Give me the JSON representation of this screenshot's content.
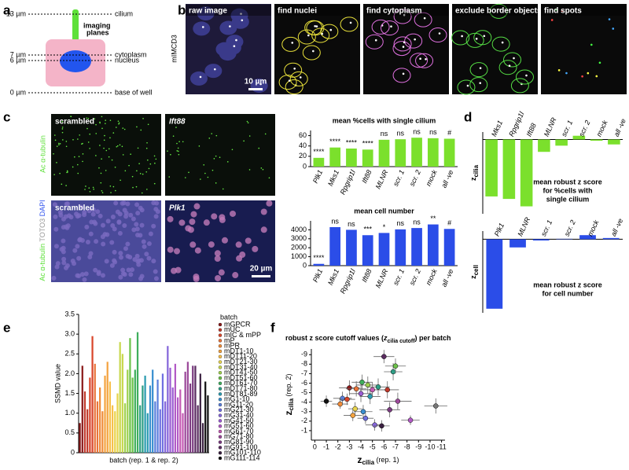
{
  "panels": {
    "a": {
      "letter": "a",
      "levels": [
        {
          "label": "13 µm",
          "name": "cilium"
        },
        {
          "label": "7 µm",
          "name": "cytoplasm"
        },
        {
          "label": "6 µm",
          "name": "nucleus"
        },
        {
          "label": "0 µm",
          "name": "base of well"
        }
      ],
      "imaging_planes": [
        "imaging",
        "planes"
      ]
    },
    "b": {
      "letter": "b",
      "row_label": "mIMCD3",
      "images": [
        "raw image",
        "find nuclei",
        "find cytoplasm",
        "exclude border objects",
        "find spots"
      ],
      "scale_bar": "10 µm"
    },
    "c": {
      "letter": "c",
      "top_label": "Ac α-tubulin",
      "bottom_label": [
        "Ac α-tubulin",
        "TOTO3",
        "DAPI"
      ],
      "images": [
        "scrambled",
        "Ift88",
        "scrambled",
        "Plk1"
      ],
      "scale_bar": "20 µm"
    },
    "d": {
      "letter": "d"
    },
    "e": {
      "letter": "e"
    },
    "f": {
      "letter": "f"
    }
  },
  "chart_data": [
    {
      "type": "bar",
      "title": "mean %cells with single cilium",
      "categories": [
        "Plk1",
        "Mks1",
        "Rpgrip1l",
        "Ift88",
        "MLNR",
        "scr. 1",
        "scr. 2",
        "mock",
        "all -ve"
      ],
      "values": [
        17,
        37,
        35,
        33,
        52,
        53,
        56,
        55,
        54
      ],
      "annotations": [
        "****",
        "****",
        "****",
        "****",
        "ns",
        "ns",
        "ns",
        "ns",
        "#"
      ],
      "color": "#7be02c",
      "ylim": [
        0,
        70
      ],
      "yticks": [
        0,
        20,
        40,
        60
      ]
    },
    {
      "type": "bar",
      "title": "mean cell number",
      "categories": [
        "Plk1",
        "Mks1",
        "Rpgrip1l",
        "Ift88",
        "MLNR",
        "scr. 1",
        "scr. 2",
        "mock",
        "all -ve"
      ],
      "values": [
        200,
        4300,
        4000,
        3400,
        3650,
        4050,
        4200,
        4600,
        4100
      ],
      "annotations": [
        "****",
        "ns",
        "ns",
        "***",
        "*",
        "ns",
        "ns",
        "**",
        "#"
      ],
      "color": "#2b4de8",
      "ylim": [
        0,
        5000
      ],
      "yticks": [
        0,
        1000,
        2000,
        3000,
        4000
      ]
    },
    {
      "type": "zbar",
      "ylabel": "z",
      "ylabel_sub": "cilia",
      "annotation": [
        "mean robust z score",
        "for %cells with",
        "single cilium"
      ],
      "categories": [
        "Mks1",
        "Rpgrip1l",
        "Ift88",
        "MLNR",
        "scr. 1",
        "scr. 2",
        "mock",
        "all -ve"
      ],
      "values": [
        -4.6,
        -4.8,
        -5.4,
        -1.0,
        -0.5,
        0.3,
        -0.1,
        -0.4
      ],
      "color": "#7be02c",
      "ylim": [
        -6,
        0.6
      ]
    },
    {
      "type": "zbar",
      "ylabel": "z",
      "ylabel_sub": "cell",
      "annotation": [
        "mean robust z score",
        "for cell number"
      ],
      "categories": [
        "Plk1",
        "MLNR",
        "scr. 1",
        "scr. 2",
        "mock",
        "all -ve"
      ],
      "values": [
        -17,
        -2,
        -0.3,
        0.1,
        1.0,
        0.3
      ],
      "color": "#2b4de8",
      "ylim": [
        -18,
        2
      ]
    },
    {
      "type": "batchbar",
      "ylabel": "SSMD value",
      "xlabel": "batch (rep. 1 & rep. 2)",
      "legend_title": "batch",
      "ylim": [
        0,
        3.5
      ],
      "yticks": [
        0,
        0.5,
        {
          "value": 1,
          "label": "1.0"
        },
        1.5,
        {
          "value": 2,
          "label": "2.0"
        },
        2.5,
        {
          "value": 3,
          "label": "3.0"
        },
        3.5
      ],
      "series": [
        {
          "name": "mGPCR",
          "color": "#8b1a1a",
          "values": [
            0.75,
            2.2
          ]
        },
        {
          "name": "mUC",
          "color": "#c0392b",
          "values": [
            1.55,
            1.1
          ]
        },
        {
          "name": "mIC & mPP",
          "color": "#d9462b",
          "values": [
            1.9,
            2.95
          ]
        },
        {
          "name": "mP",
          "color": "#e8743b",
          "values": [
            2.25,
            1.3
          ]
        },
        {
          "name": "mPR",
          "color": "#f08c3a",
          "values": [
            1.65,
            1.05
          ]
        },
        {
          "name": "mDT1-10",
          "color": "#f4a340",
          "values": [
            1.95,
            2.3
          ]
        },
        {
          "name": "mDT11-20",
          "color": "#f7c04a",
          "values": [
            1.8,
            1.2
          ]
        },
        {
          "name": "mDT21-30",
          "color": "#e8d44d",
          "values": [
            1.05,
            1.5
          ]
        },
        {
          "name": "mDT31-40",
          "color": "#c8d84e",
          "values": [
            2.8,
            2.5
          ]
        },
        {
          "name": "mDT41-50",
          "color": "#9fd14f",
          "values": [
            1.25,
            2.1
          ]
        },
        {
          "name": "mDT51-60",
          "color": "#6cc24a",
          "values": [
            2.9,
            1.9
          ]
        },
        {
          "name": "mDT61-70",
          "color": "#3fae5c",
          "values": [
            2.1,
            3.05
          ]
        },
        {
          "name": "mDT71-80",
          "color": "#2e9e86",
          "values": [
            1.2,
            1.7
          ]
        },
        {
          "name": "mDT81-89",
          "color": "#2a9bb0",
          "values": [
            1.95,
            1.0
          ]
        },
        {
          "name": "mG1-10",
          "color": "#3a8fd0",
          "values": [
            1.7,
            2.1
          ]
        },
        {
          "name": "mG11-20",
          "color": "#5b7fdc",
          "values": [
            1.3,
            1.85
          ]
        },
        {
          "name": "mG21-30",
          "color": "#6f6fe0",
          "values": [
            1.1,
            2.0
          ]
        },
        {
          "name": "mG31-40",
          "color": "#8566da",
          "values": [
            1.3,
            2.7
          ]
        },
        {
          "name": "mG41-50",
          "color": "#9b5cd2",
          "values": [
            2.15,
            1.65
          ]
        },
        {
          "name": "mG51-60",
          "color": "#b35ac6",
          "values": [
            2.25,
            1.4
          ]
        },
        {
          "name": "mG61-70",
          "color": "#c55bb4",
          "values": [
            1.6,
            1.0
          ]
        },
        {
          "name": "mG71-80",
          "color": "#9c4a9a",
          "values": [
            2.05,
            2.3
          ]
        },
        {
          "name": "mG81-90",
          "color": "#7a3a80",
          "values": [
            1.75,
            2.2
          ]
        },
        {
          "name": "mG91-100",
          "color": "#5a2c60",
          "values": [
            2.2,
            1.2
          ]
        },
        {
          "name": "mG101-110",
          "color": "#3a2040",
          "values": [
            2.0,
            0.75
          ]
        },
        {
          "name": "mG111-114",
          "color": "#111111",
          "values": [
            1.8,
            1.45
          ]
        }
      ]
    },
    {
      "type": "scatter",
      "title": [
        "robust z score cutoff values (",
        "z",
        "cilia cutoff",
        ") per batch"
      ],
      "xlabel": [
        "z",
        "cilia",
        " (rep. 1)"
      ],
      "ylabel": [
        "z",
        "cilia",
        " (rep. 2)"
      ],
      "xlim": [
        0.3,
        -11.3
      ],
      "ylim": [
        0,
        -9.6
      ],
      "xticks": [
        0,
        -1,
        -2,
        -3,
        -4,
        -5,
        -6,
        -7,
        -8,
        -9,
        -10,
        -11
      ],
      "yticks": [
        -1,
        -2,
        -3,
        -4,
        -5,
        -6,
        -7,
        -8,
        -9
      ],
      "x": [
        -1,
        -2.2,
        -2.4,
        -2.8,
        -3,
        -3.3,
        -3.5,
        -3.6,
        -4,
        -4.1,
        -4.2,
        -4.4,
        -4.6,
        -4.8,
        -5,
        -5.2,
        -5.5,
        -5.8,
        -6,
        -6.3,
        -6.5,
        -6.8,
        -7,
        -7.2,
        -8.3,
        -10.5
      ],
      "y": [
        -4.1,
        -3.8,
        -4.4,
        -4.3,
        -5.5,
        -2.6,
        -3.3,
        -5.4,
        -4.9,
        -6.1,
        -3.0,
        -2.3,
        -5.8,
        -4.6,
        -5.3,
        -1.6,
        -5.6,
        -1.5,
        -8.8,
        -5.3,
        -3.2,
        -7.2,
        -7.8,
        -4.1,
        -2.1,
        -3.6
      ],
      "xerr": [
        0.5,
        0.7,
        0.8,
        0.7,
        0.9,
        0.8,
        0.6,
        0.9,
        1.0,
        0.9,
        0.8,
        0.7,
        1.0,
        0.9,
        1.1,
        0.8,
        1.0,
        0.7,
        0.9,
        1.0,
        0.9,
        0.8,
        0.9,
        1.2,
        0.8,
        1.0
      ],
      "yerr": [
        0.6,
        0.5,
        0.7,
        0.6,
        0.8,
        0.6,
        0.7,
        0.8,
        0.9,
        0.8,
        0.7,
        0.6,
        0.9,
        0.8,
        0.8,
        0.6,
        0.9,
        0.6,
        0.7,
        0.9,
        0.8,
        0.9,
        0.8,
        0.9,
        0.5,
        0.8
      ],
      "colors": [
        "#111111",
        "#f08c3a",
        "#5b7fdc",
        "#d9462b",
        "#8b1a1a",
        "#f4a340",
        "#e8d44d",
        "#e8743b",
        "#9b5cd2",
        "#3fae5c",
        "#3a8fd0",
        "#6f6fe0",
        "#9fd14f",
        "#2a9bb0",
        "#c55bb4",
        "#8566da",
        "#2e9e86",
        "#3a2040",
        "#5a2c60",
        "#c0392b",
        "#7a3a80",
        "#2e9e86",
        "#6cc24a",
        "#9c4a9a",
        "#b35ac6",
        "#777777"
      ]
    }
  ]
}
